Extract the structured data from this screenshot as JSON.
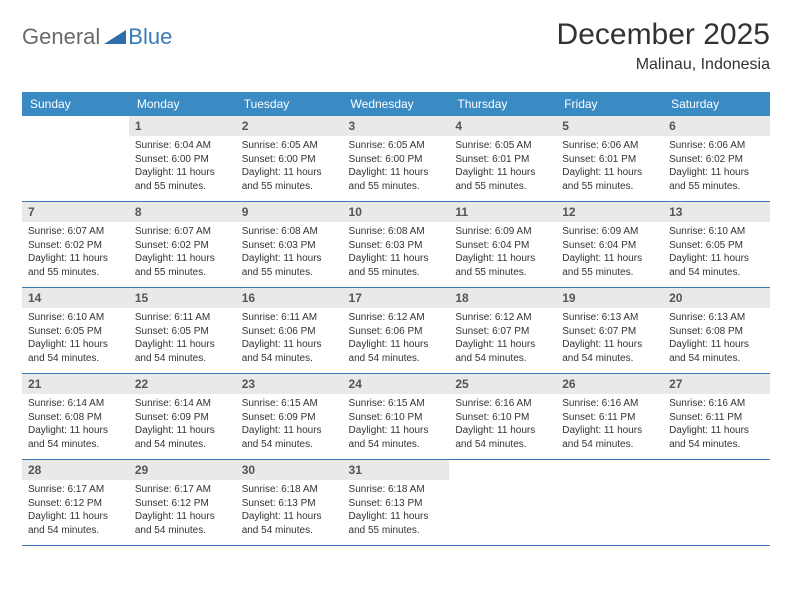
{
  "logo": {
    "general": "General",
    "blue": "Blue",
    "mark_color": "#2f6fa8"
  },
  "title": "December 2025",
  "location": "Malinau, Indonesia",
  "colors": {
    "header_bg": "#3a8ac4",
    "header_text": "#ffffff",
    "daynum_bg": "#e9e9e9",
    "border": "#3a7ab8",
    "page_bg": "#ffffff"
  },
  "weekdays": [
    "Sunday",
    "Monday",
    "Tuesday",
    "Wednesday",
    "Thursday",
    "Friday",
    "Saturday"
  ],
  "start_offset": 1,
  "days": [
    {
      "n": 1,
      "sr": "6:04 AM",
      "ss": "6:00 PM",
      "dl": "11 hours and 55 minutes."
    },
    {
      "n": 2,
      "sr": "6:05 AM",
      "ss": "6:00 PM",
      "dl": "11 hours and 55 minutes."
    },
    {
      "n": 3,
      "sr": "6:05 AM",
      "ss": "6:00 PM",
      "dl": "11 hours and 55 minutes."
    },
    {
      "n": 4,
      "sr": "6:05 AM",
      "ss": "6:01 PM",
      "dl": "11 hours and 55 minutes."
    },
    {
      "n": 5,
      "sr": "6:06 AM",
      "ss": "6:01 PM",
      "dl": "11 hours and 55 minutes."
    },
    {
      "n": 6,
      "sr": "6:06 AM",
      "ss": "6:02 PM",
      "dl": "11 hours and 55 minutes."
    },
    {
      "n": 7,
      "sr": "6:07 AM",
      "ss": "6:02 PM",
      "dl": "11 hours and 55 minutes."
    },
    {
      "n": 8,
      "sr": "6:07 AM",
      "ss": "6:02 PM",
      "dl": "11 hours and 55 minutes."
    },
    {
      "n": 9,
      "sr": "6:08 AM",
      "ss": "6:03 PM",
      "dl": "11 hours and 55 minutes."
    },
    {
      "n": 10,
      "sr": "6:08 AM",
      "ss": "6:03 PM",
      "dl": "11 hours and 55 minutes."
    },
    {
      "n": 11,
      "sr": "6:09 AM",
      "ss": "6:04 PM",
      "dl": "11 hours and 55 minutes."
    },
    {
      "n": 12,
      "sr": "6:09 AM",
      "ss": "6:04 PM",
      "dl": "11 hours and 55 minutes."
    },
    {
      "n": 13,
      "sr": "6:10 AM",
      "ss": "6:05 PM",
      "dl": "11 hours and 54 minutes."
    },
    {
      "n": 14,
      "sr": "6:10 AM",
      "ss": "6:05 PM",
      "dl": "11 hours and 54 minutes."
    },
    {
      "n": 15,
      "sr": "6:11 AM",
      "ss": "6:05 PM",
      "dl": "11 hours and 54 minutes."
    },
    {
      "n": 16,
      "sr": "6:11 AM",
      "ss": "6:06 PM",
      "dl": "11 hours and 54 minutes."
    },
    {
      "n": 17,
      "sr": "6:12 AM",
      "ss": "6:06 PM",
      "dl": "11 hours and 54 minutes."
    },
    {
      "n": 18,
      "sr": "6:12 AM",
      "ss": "6:07 PM",
      "dl": "11 hours and 54 minutes."
    },
    {
      "n": 19,
      "sr": "6:13 AM",
      "ss": "6:07 PM",
      "dl": "11 hours and 54 minutes."
    },
    {
      "n": 20,
      "sr": "6:13 AM",
      "ss": "6:08 PM",
      "dl": "11 hours and 54 minutes."
    },
    {
      "n": 21,
      "sr": "6:14 AM",
      "ss": "6:08 PM",
      "dl": "11 hours and 54 minutes."
    },
    {
      "n": 22,
      "sr": "6:14 AM",
      "ss": "6:09 PM",
      "dl": "11 hours and 54 minutes."
    },
    {
      "n": 23,
      "sr": "6:15 AM",
      "ss": "6:09 PM",
      "dl": "11 hours and 54 minutes."
    },
    {
      "n": 24,
      "sr": "6:15 AM",
      "ss": "6:10 PM",
      "dl": "11 hours and 54 minutes."
    },
    {
      "n": 25,
      "sr": "6:16 AM",
      "ss": "6:10 PM",
      "dl": "11 hours and 54 minutes."
    },
    {
      "n": 26,
      "sr": "6:16 AM",
      "ss": "6:11 PM",
      "dl": "11 hours and 54 minutes."
    },
    {
      "n": 27,
      "sr": "6:16 AM",
      "ss": "6:11 PM",
      "dl": "11 hours and 54 minutes."
    },
    {
      "n": 28,
      "sr": "6:17 AM",
      "ss": "6:12 PM",
      "dl": "11 hours and 54 minutes."
    },
    {
      "n": 29,
      "sr": "6:17 AM",
      "ss": "6:12 PM",
      "dl": "11 hours and 54 minutes."
    },
    {
      "n": 30,
      "sr": "6:18 AM",
      "ss": "6:13 PM",
      "dl": "11 hours and 54 minutes."
    },
    {
      "n": 31,
      "sr": "6:18 AM",
      "ss": "6:13 PM",
      "dl": "11 hours and 55 minutes."
    }
  ],
  "labels": {
    "sunrise": "Sunrise:",
    "sunset": "Sunset:",
    "daylight": "Daylight:"
  }
}
